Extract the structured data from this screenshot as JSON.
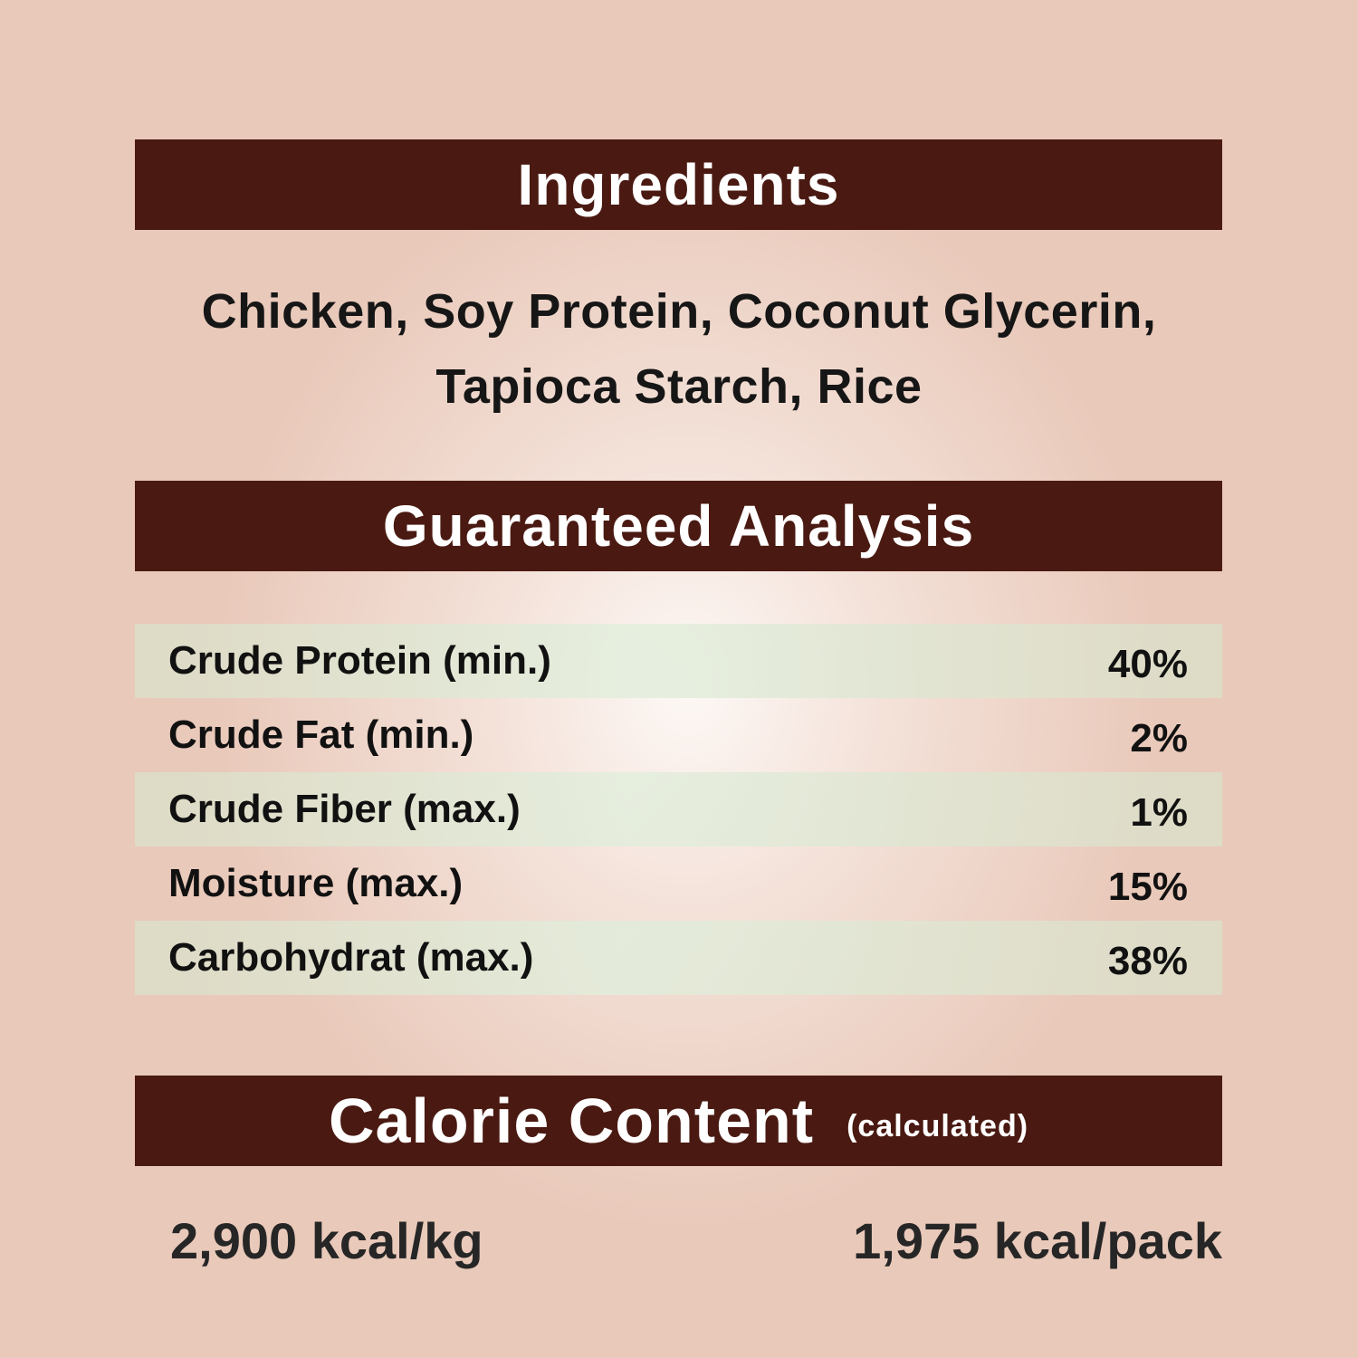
{
  "ingredients": {
    "title": "Ingredients",
    "line1": "Chicken,  Soy Protein, Coconut Glycerin,",
    "line2": "Tapioca Starch, Rice"
  },
  "analysis": {
    "title": "Guaranteed Analysis",
    "rows": [
      {
        "label": "Crude Protein (min.)",
        "value": "40%"
      },
      {
        "label": "Crude Fat (min.)",
        "value": "2%"
      },
      {
        "label": "Crude Fiber (max.)",
        "value": "1%"
      },
      {
        "label": "Moisture (max.)",
        "value": "15%"
      },
      {
        "label": "Carbohydrat (max.)",
        "value": "38%"
      }
    ]
  },
  "calorie": {
    "title": "Calorie Content",
    "subtitle": "(calculated)",
    "per_kg": "2,900 kcal/kg",
    "per_pack": "1,975 kcal/pack"
  },
  "colors": {
    "banner": "#4a1a12",
    "background": "#e8c9b9"
  }
}
